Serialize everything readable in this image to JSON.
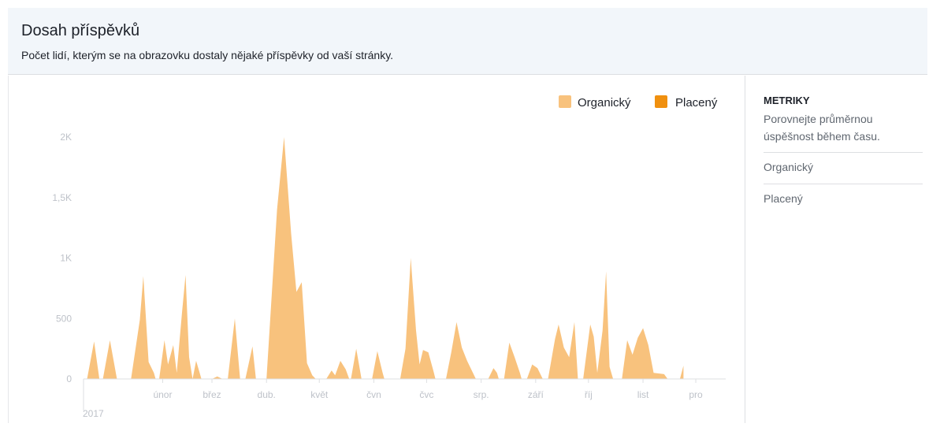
{
  "header": {
    "title": "Dosah příspěvků",
    "subtitle": "Počet lidí, kterým se na obrazovku dostaly nějaké příspěvky od vaší stránky."
  },
  "sidebar": {
    "title": "METRIKY",
    "description": "Porovnejte průměrnou úspěšnost během času.",
    "items": [
      {
        "label": "Organický"
      },
      {
        "label": "Placený"
      }
    ]
  },
  "colors": {
    "organic": "#f8c27d",
    "paid": "#f0900f",
    "axis_text": "#bec2c9",
    "baseline": "#dddfe2"
  },
  "chart_data": {
    "type": "area",
    "legend": [
      {
        "name": "Organický",
        "color": "#f8c27d"
      },
      {
        "name": "Placený",
        "color": "#f0900f"
      }
    ],
    "legend_position": "top-right",
    "ylim": [
      0,
      2000
    ],
    "yticks": [
      0,
      500,
      1000,
      1500,
      2000
    ],
    "ytick_labels": [
      "0",
      "500",
      "1K",
      "1,5K",
      "2K"
    ],
    "xlim": [
      0,
      365
    ],
    "year_label": "2017",
    "months": [
      {
        "label": "únor",
        "day": 45
      },
      {
        "label": "břez",
        "day": 73
      },
      {
        "label": "dub.",
        "day": 104
      },
      {
        "label": "květ",
        "day": 134
      },
      {
        "label": "čvn",
        "day": 165
      },
      {
        "label": "čvc",
        "day": 195
      },
      {
        "label": "srp.",
        "day": 226
      },
      {
        "label": "září",
        "day": 257
      },
      {
        "label": "říj",
        "day": 287
      },
      {
        "label": "list",
        "day": 318
      },
      {
        "label": "pro",
        "day": 348
      }
    ],
    "series": [
      {
        "name": "Organický",
        "points": [
          [
            0,
            0
          ],
          [
            2,
            0
          ],
          [
            6,
            310
          ],
          [
            9,
            0
          ],
          [
            11,
            0
          ],
          [
            15,
            320
          ],
          [
            19,
            0
          ],
          [
            27,
            0
          ],
          [
            32,
            490
          ],
          [
            34,
            850
          ],
          [
            37,
            140
          ],
          [
            40,
            50
          ],
          [
            41,
            0
          ],
          [
            43,
            0
          ],
          [
            46,
            320
          ],
          [
            48,
            120
          ],
          [
            51,
            280
          ],
          [
            53,
            50
          ],
          [
            56,
            550
          ],
          [
            58,
            860
          ],
          [
            60,
            180
          ],
          [
            62,
            0
          ],
          [
            64,
            150
          ],
          [
            66,
            50
          ],
          [
            67,
            0
          ],
          [
            73,
            0
          ],
          [
            76,
            20
          ],
          [
            79,
            0
          ],
          [
            82,
            0
          ],
          [
            86,
            500
          ],
          [
            89,
            0
          ],
          [
            92,
            0
          ],
          [
            96,
            270
          ],
          [
            98,
            0
          ],
          [
            104,
            0
          ],
          [
            110,
            1400
          ],
          [
            114,
            2000
          ],
          [
            118,
            1200
          ],
          [
            121,
            720
          ],
          [
            124,
            800
          ],
          [
            127,
            130
          ],
          [
            130,
            30
          ],
          [
            132,
            0
          ],
          [
            138,
            0
          ],
          [
            141,
            70
          ],
          [
            143,
            30
          ],
          [
            146,
            150
          ],
          [
            149,
            80
          ],
          [
            151,
            0
          ],
          [
            152,
            0
          ],
          [
            155,
            250
          ],
          [
            158,
            0
          ],
          [
            164,
            0
          ],
          [
            167,
            230
          ],
          [
            170,
            50
          ],
          [
            171,
            0
          ],
          [
            180,
            0
          ],
          [
            183,
            250
          ],
          [
            186,
            1000
          ],
          [
            189,
            400
          ],
          [
            191,
            120
          ],
          [
            193,
            240
          ],
          [
            196,
            220
          ],
          [
            199,
            60
          ],
          [
            200,
            0
          ],
          [
            206,
            0
          ],
          [
            209,
            220
          ],
          [
            212,
            470
          ],
          [
            215,
            260
          ],
          [
            218,
            150
          ],
          [
            222,
            30
          ],
          [
            223,
            0
          ],
          [
            230,
            0
          ],
          [
            233,
            90
          ],
          [
            235,
            50
          ],
          [
            236,
            0
          ],
          [
            239,
            0
          ],
          [
            242,
            300
          ],
          [
            245,
            180
          ],
          [
            248,
            50
          ],
          [
            249,
            0
          ],
          [
            252,
            0
          ],
          [
            255,
            120
          ],
          [
            258,
            90
          ],
          [
            261,
            0
          ],
          [
            264,
            0
          ],
          [
            268,
            330
          ],
          [
            270,
            450
          ],
          [
            273,
            260
          ],
          [
            276,
            180
          ],
          [
            279,
            470
          ],
          [
            281,
            0
          ],
          [
            284,
            0
          ],
          [
            288,
            450
          ],
          [
            290,
            350
          ],
          [
            292,
            50
          ],
          [
            295,
            400
          ],
          [
            297,
            890
          ],
          [
            299,
            100
          ],
          [
            301,
            0
          ],
          [
            306,
            0
          ],
          [
            309,
            320
          ],
          [
            312,
            200
          ],
          [
            315,
            340
          ],
          [
            318,
            420
          ],
          [
            321,
            280
          ],
          [
            324,
            50
          ],
          [
            330,
            40
          ],
          [
            332,
            0
          ],
          [
            339,
            0
          ],
          [
            341,
            110
          ]
        ]
      },
      {
        "name": "Placený",
        "points": []
      }
    ]
  }
}
